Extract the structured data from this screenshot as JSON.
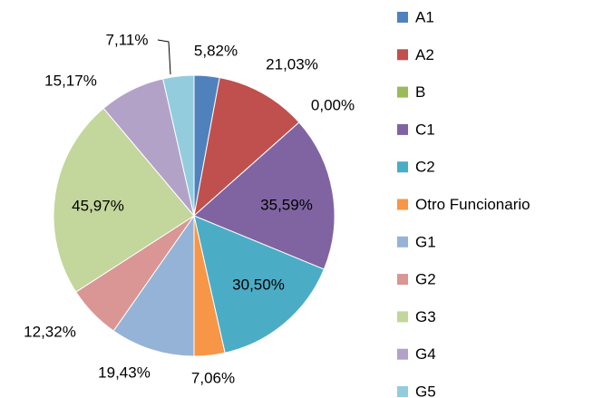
{
  "chart_data": {
    "type": "pie",
    "categories": [
      "A1",
      "A2",
      "B",
      "C1",
      "C2",
      "Otro Funcionario",
      "G1",
      "G2",
      "G3",
      "G4",
      "G5"
    ],
    "values": [
      5.82,
      21.03,
      0.0,
      35.59,
      30.5,
      7.06,
      19.43,
      12.32,
      45.97,
      15.17,
      7.11
    ],
    "value_labels": [
      "5,82%",
      "21,03%",
      "0,00%",
      "35,59%",
      "30,50%",
      "7,06%",
      "19,43%",
      "12,32%",
      "45,97%",
      "15,17%",
      "7,11%"
    ],
    "colors": [
      "#4f81bd",
      "#c0504d",
      "#9bbb59",
      "#8064a2",
      "#4bacc6",
      "#f79646",
      "#95b3d7",
      "#d99694",
      "#c3d69b",
      "#b3a2c7",
      "#93cddd"
    ],
    "legend": "right"
  }
}
